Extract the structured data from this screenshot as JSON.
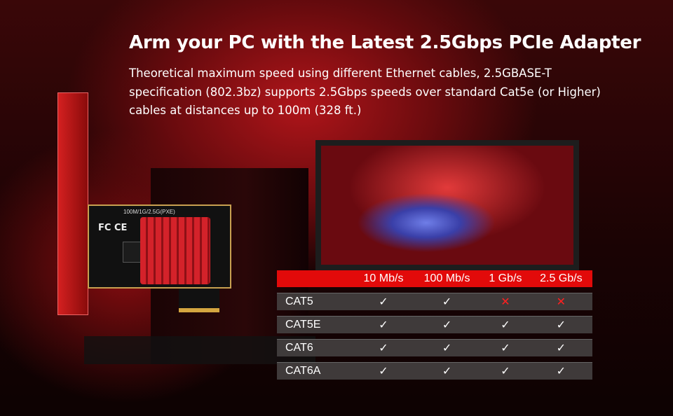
{
  "header": {
    "title": "Arm your PC with the Latest 2.5Gbps PCIe Adapter",
    "description": "Theoretical maximum speed using different Ethernet cables, 2.5GBASE-T specification (802.3bz) supports 2.5Gbps speeds over standard Cat5e (or Higher) cables at distances up to 100m (328 ft.)"
  },
  "product": {
    "pcb_label": "100M/1G/2.5G(PXE)",
    "marks": "FC CE"
  },
  "table": {
    "columns": [
      "",
      "10 Mb/s",
      "100 Mb/s",
      "1 Gb/s",
      "2.5 Gb/s"
    ],
    "rows": [
      {
        "label": "CAT5",
        "values": [
          "✓",
          "✓",
          "✕",
          "✕"
        ]
      },
      {
        "label": "CAT5E",
        "values": [
          "✓",
          "✓",
          "✓",
          "✓"
        ]
      },
      {
        "label": "CAT6",
        "values": [
          "✓",
          "✓",
          "✓",
          "✓"
        ]
      },
      {
        "label": "CAT6A",
        "values": [
          "✓",
          "✓",
          "✓",
          "✓"
        ]
      }
    ]
  },
  "colors": {
    "accent": "#e20a0a",
    "unsupported": "#ff2020"
  }
}
